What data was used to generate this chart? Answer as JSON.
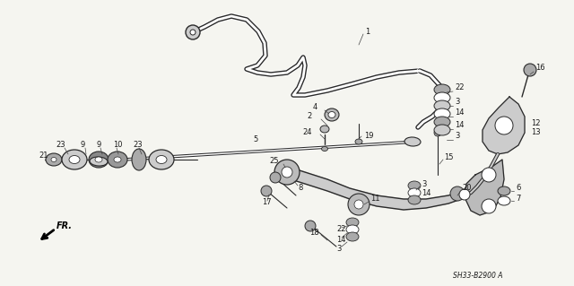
{
  "background_color": "#f5f5f0",
  "fig_width": 6.4,
  "fig_height": 3.19,
  "dpi": 100,
  "diagram_code": "SH33-B2900 A",
  "line_color": "#2a2a2a",
  "text_color": "#1a1a1a",
  "label_fontsize": 6.0,
  "code_fontsize": 5.5
}
